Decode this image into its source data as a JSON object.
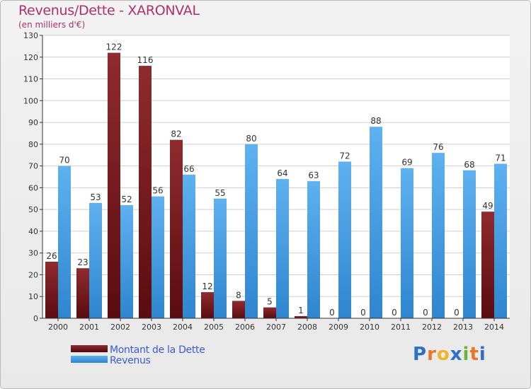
{
  "chart_data": {
    "type": "bar",
    "title": "Revenus/Dette - XARONVAL",
    "subtitle": "(en milliers d'€)",
    "categories": [
      "2000",
      "2001",
      "2002",
      "2003",
      "2004",
      "2005",
      "2006",
      "2007",
      "2008",
      "2009",
      "2010",
      "2011",
      "2012",
      "2013",
      "2014"
    ],
    "series": [
      {
        "name": "Montant de la Dette",
        "color": "#7a1e22",
        "values": [
          26,
          23,
          122,
          116,
          82,
          12,
          8,
          5,
          1,
          0,
          0,
          0,
          0,
          0,
          49
        ]
      },
      {
        "name": "Revenus",
        "color": "#4fa3e3",
        "values": [
          70,
          53,
          52,
          56,
          66,
          55,
          80,
          64,
          63,
          72,
          88,
          69,
          76,
          68,
          71
        ]
      }
    ],
    "ylim": [
      0,
      130
    ],
    "yticks": [
      0,
      10,
      20,
      30,
      40,
      50,
      60,
      70,
      80,
      90,
      100,
      110,
      120,
      130
    ],
    "grid": true,
    "legend_position": "bottom-left"
  },
  "logo": {
    "text": "Proxiti",
    "letters": [
      "P",
      "r",
      "o",
      "x",
      "i",
      "t",
      "i"
    ],
    "colors": [
      "#2e6fc9",
      "#e8762b",
      "#f0b428",
      "#2e6fc9",
      "#6bb43a",
      "#e8762b",
      "#2e6fc9"
    ]
  }
}
